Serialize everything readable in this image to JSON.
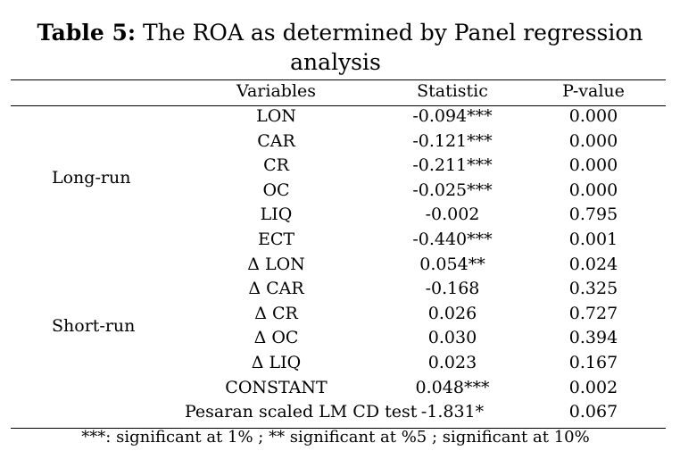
{
  "title": {
    "label": "Table 5:",
    "text_line1": "The ROA as determined by Panel regression",
    "text_line2": "analysis"
  },
  "header": {
    "variables": "Variables",
    "statistic": "Statistic",
    "pvalue": "P-value"
  },
  "groups": {
    "long_run": "Long-run",
    "short_run": "Short-run"
  },
  "rows": [
    {
      "variable": "LON",
      "statistic": "-0.094***",
      "pvalue": "0.000"
    },
    {
      "variable": "CAR",
      "statistic": "-0.121***",
      "pvalue": "0.000"
    },
    {
      "variable": "CR",
      "statistic": "-0.211***",
      "pvalue": "0.000"
    },
    {
      "variable": "OC",
      "statistic": "-0.025***",
      "pvalue": "0.000"
    },
    {
      "variable": "LIQ",
      "statistic": "-0.002",
      "pvalue": "0.795"
    },
    {
      "variable": "ECT",
      "statistic": "-0.440***",
      "pvalue": "0.001"
    },
    {
      "variable": "Δ LON",
      "statistic": "0.054**",
      "pvalue": "0.024"
    },
    {
      "variable": "Δ CAR",
      "statistic": "-0.168",
      "pvalue": "0.325"
    },
    {
      "variable": "Δ CR",
      "statistic": "0.026",
      "pvalue": "0.727"
    },
    {
      "variable": "Δ OC",
      "statistic": "0.030",
      "pvalue": "0.394"
    },
    {
      "variable": "Δ LIQ",
      "statistic": "0.023",
      "pvalue": "0.167"
    },
    {
      "variable": "CONSTANT",
      "statistic": "0.048***",
      "pvalue": "0.002"
    },
    {
      "variable": "Pesaran scaled LM CD test",
      "statistic": "-1.831*",
      "pvalue": "0.067"
    }
  ],
  "footnote": "***: significant at 1% ; ** significant at %5 ;  significant at 10%"
}
